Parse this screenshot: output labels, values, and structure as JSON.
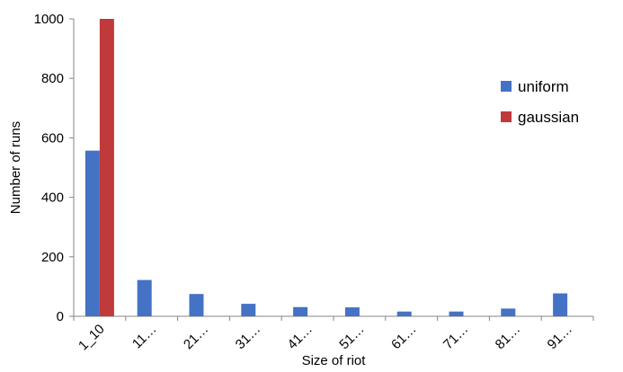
{
  "chart_data": {
    "type": "bar",
    "title": "",
    "xlabel": "Size of riot",
    "ylabel": "Number of runs",
    "ylim": [
      0,
      1000
    ],
    "yticks": [
      0,
      200,
      400,
      600,
      800,
      1000
    ],
    "grid": false,
    "legend_position": "right",
    "categories": [
      "1_10",
      "11…",
      "21…",
      "31…",
      "41…",
      "51…",
      "61…",
      "71…",
      "81…",
      "91…"
    ],
    "series": [
      {
        "name": "uniform",
        "color": "#4472c4",
        "values": [
          557,
          122,
          75,
          42,
          31,
          30,
          16,
          16,
          26,
          77
        ]
      },
      {
        "name": "gaussian",
        "color": "#c0393b",
        "values": [
          1000,
          0,
          0,
          0,
          0,
          0,
          0,
          0,
          0,
          0
        ]
      }
    ]
  }
}
